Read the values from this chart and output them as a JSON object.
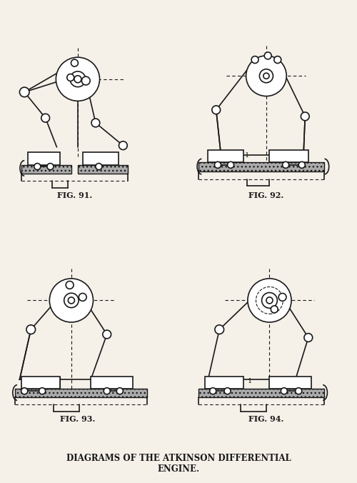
{
  "title": "DIAGRAMS OF THE ATKINSON DIFFERENTIAL\nENGINE.",
  "fig_labels": [
    "FIG. 91.",
    "FIG. 92.",
    "FIG. 93.",
    "FIG. 94."
  ],
  "bg_color": "#f5f0e8",
  "line_color": "#1a1a1a",
  "lw": 1.2
}
